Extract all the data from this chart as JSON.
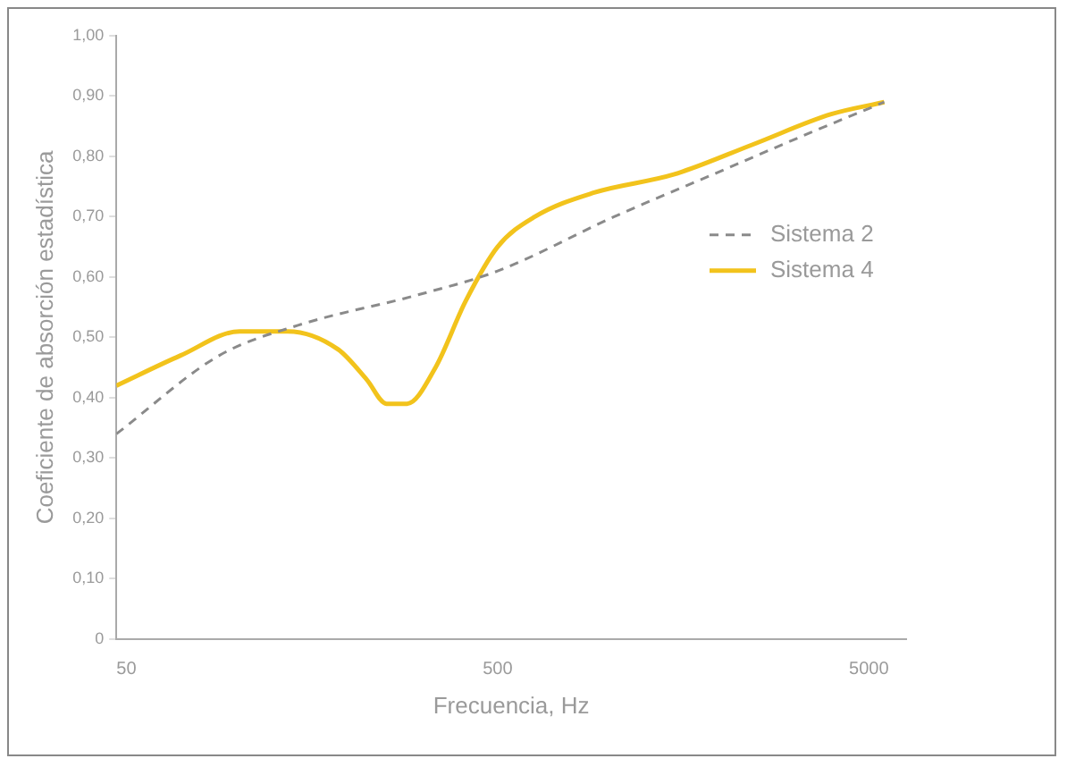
{
  "chart_data": {
    "type": "line",
    "xlabel": "Frecuencia, Hz",
    "ylabel": "Coeficiente de absorción estadística",
    "log": "x",
    "xlim": [
      47,
      6300
    ],
    "xticks": [
      50,
      500,
      5000
    ],
    "ylim": [
      0,
      1
    ],
    "yticks": [
      {
        "value": 0,
        "label": "0"
      },
      {
        "value": 0.1,
        "label": "0,10"
      },
      {
        "value": 0.2,
        "label": "0,20"
      },
      {
        "value": 0.3,
        "label": "0,30"
      },
      {
        "value": 0.4,
        "label": "0,40"
      },
      {
        "value": 0.5,
        "label": "0,50"
      },
      {
        "value": 0.6,
        "label": "0,60"
      },
      {
        "value": 0.7,
        "label": "0,70"
      },
      {
        "value": 0.8,
        "label": "0,80"
      },
      {
        "value": 0.9,
        "label": "0,90"
      },
      {
        "value": 1,
        "label": "1,00"
      }
    ],
    "grid": false,
    "legend": "top right",
    "marker": "none",
    "series": [
      {
        "name": "Sistema 2",
        "color": "#8a8a8a",
        "line_style": "dashed",
        "x": [
          47,
          89,
          145,
          303,
          500,
          1030,
          1900,
          3500,
          5500
        ],
        "values": [
          0.34,
          0.47,
          0.52,
          0.57,
          0.61,
          0.7,
          0.77,
          0.84,
          0.89
        ]
      },
      {
        "name": "Sistema 4",
        "color": "#f2c31c",
        "line_style": "solid",
        "x": [
          47,
          70,
          101,
          136,
          186,
          222,
          251,
          285,
          340,
          410,
          500,
          630,
          910,
          1490,
          2440,
          3960,
          5500
        ],
        "values": [
          0.42,
          0.47,
          0.51,
          0.51,
          0.48,
          0.43,
          0.39,
          0.39,
          0.45,
          0.56,
          0.65,
          0.7,
          0.74,
          0.77,
          0.82,
          0.87,
          0.89
        ]
      }
    ]
  }
}
